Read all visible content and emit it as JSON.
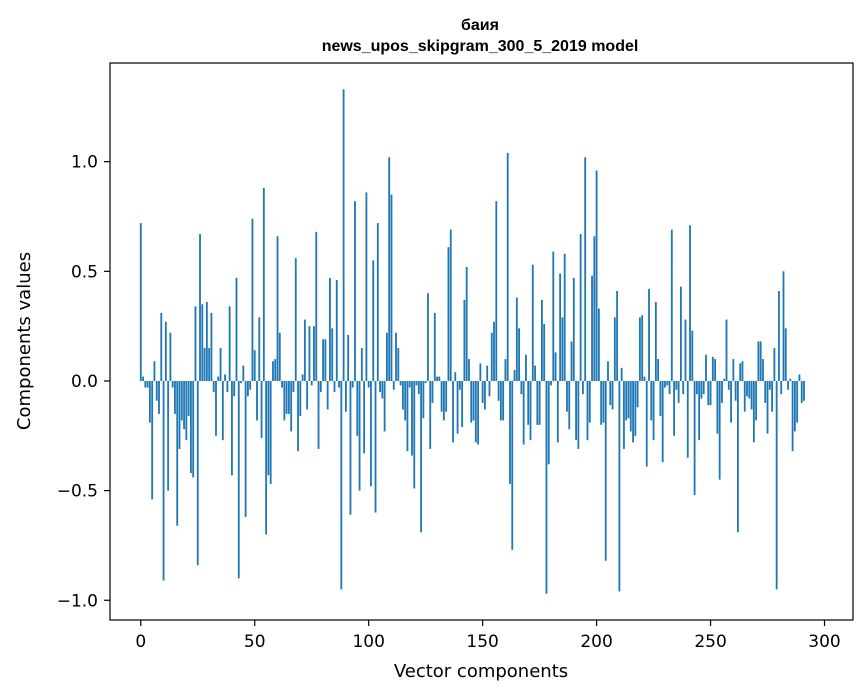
{
  "chart_data": {
    "type": "bar",
    "title": "баия",
    "subtitle": "news_upos_skipgram_300_5_2019 model",
    "xlabel": "Vector components",
    "ylabel": "Components values",
    "xlim": [
      -13.5,
      312.5
    ],
    "ylim": [
      -1.09,
      1.45
    ],
    "xticks": [
      0,
      50,
      100,
      150,
      200,
      250,
      300
    ],
    "yticks": [
      -1.0,
      -0.5,
      0.0,
      0.5,
      1.0
    ],
    "ytick_labels": [
      "−1.0",
      "−0.5",
      "0.0",
      "0.5",
      "1.0"
    ],
    "bar_color": "#1f77b4",
    "grid": false,
    "values": [
      0.72,
      0.02,
      -0.03,
      -0.03,
      -0.19,
      -0.54,
      0.09,
      -0.09,
      -0.15,
      0.31,
      -0.91,
      0.27,
      -0.5,
      0.22,
      -0.03,
      -0.15,
      -0.66,
      -0.31,
      -0.18,
      -0.22,
      -0.27,
      -0.16,
      -0.42,
      -0.44,
      0.34,
      -0.84,
      0.67,
      0.35,
      0.15,
      0.36,
      0.15,
      0.31,
      -0.05,
      -0.25,
      0.02,
      0.15,
      -0.27,
      0.03,
      -0.05,
      0.34,
      -0.43,
      -0.07,
      0.47,
      -0.9,
      -0.01,
      0.07,
      -0.62,
      -0.07,
      -0.04,
      0.74,
      0.14,
      -0.18,
      0.29,
      -0.26,
      0.88,
      -0.7,
      -0.43,
      -0.47,
      0.09,
      0.1,
      0.66,
      0.22,
      -0.03,
      -0.18,
      -0.15,
      -0.15,
      -0.23,
      -0.05,
      0.56,
      -0.32,
      -0.16,
      0.03,
      0.28,
      -0.13,
      0.25,
      -0.02,
      0.25,
      0.68,
      -0.31,
      -0.05,
      0.19,
      0.19,
      -0.13,
      0.47,
      0.24,
      -0.05,
      0.46,
      -0.03,
      -0.95,
      1.33,
      -0.14,
      0.21,
      -0.61,
      -0.03,
      0.82,
      -0.25,
      -0.5,
      0.15,
      -0.33,
      0.86,
      -0.03,
      -0.48,
      0.55,
      -0.6,
      0.72,
      -0.05,
      -0.08,
      -0.23,
      0.22,
      1.02,
      0.85,
      -0.04,
      0.22,
      0.15,
      -0.02,
      -0.13,
      -0.18,
      -0.32,
      -0.03,
      -0.34,
      -0.49,
      -0.02,
      -0.06,
      -0.69,
      -0.17,
      -0.01,
      0.4,
      -0.31,
      -0.1,
      0.31,
      0.02,
      0.02,
      -0.14,
      -0.18,
      -0.14,
      0.61,
      0.69,
      -0.28,
      0.04,
      -0.24,
      -0.04,
      -0.21,
      0.37,
      0.52,
      0.1,
      -0.19,
      -0.18,
      -0.28,
      -0.29,
      0.08,
      -0.1,
      -0.13,
      0.07,
      -0.07,
      0.22,
      0.27,
      0.82,
      -0.09,
      -0.18,
      -0.18,
      0.1,
      1.04,
      -0.47,
      -0.77,
      0.05,
      0.38,
      0.24,
      -0.06,
      -0.29,
      0.12,
      -0.2,
      -0.27,
      0.53,
      0.07,
      -0.2,
      -0.2,
      0.37,
      0.26,
      -0.97,
      -0.38,
      -0.02,
      0.59,
      0.13,
      -0.28,
      0.49,
      0.29,
      0.58,
      -0.14,
      -0.22,
      0.18,
      0.47,
      -0.27,
      -0.31,
      0.67,
      -0.06,
      1.02,
      -0.27,
      -0.19,
      0.48,
      0.66,
      0.96,
      0.33,
      -0.2,
      -0.19,
      -0.82,
      0.09,
      -0.11,
      -0.13,
      0.29,
      0.41,
      -0.96,
      0.06,
      -0.31,
      -0.18,
      -0.17,
      -0.23,
      -0.28,
      -0.25,
      -0.12,
      0.29,
      0.3,
      0.02,
      -0.39,
      0.42,
      -0.18,
      -0.27,
      0.36,
      0.1,
      -0.16,
      -0.37,
      -0.03,
      -0.02,
      -0.06,
      0.69,
      -0.25,
      -0.04,
      -0.1,
      0.43,
      -0.06,
      0.28,
      -0.35,
      0.71,
      0.23,
      -0.52,
      -0.06,
      -0.27,
      -0.08,
      -0.06,
      0.12,
      -0.11,
      -0.11,
      0.11,
      0.1,
      -0.24,
      -0.45,
      -0.1,
      0.01,
      0.28,
      -0.04,
      -0.19,
      0.1,
      -0.09,
      -0.69,
      0.08,
      0.09,
      -0.14,
      -0.07,
      -0.08,
      -0.13,
      -0.28,
      -0.18,
      0.18,
      0.18,
      0.1,
      -0.1,
      -0.24,
      -0.04,
      -0.14,
      0.15,
      -0.95,
      0.41,
      -0.06,
      0.5,
      0.24,
      -0.04,
      0.01,
      -0.32,
      -0.23,
      -0.19,
      0.03,
      -0.1,
      -0.09
    ]
  }
}
